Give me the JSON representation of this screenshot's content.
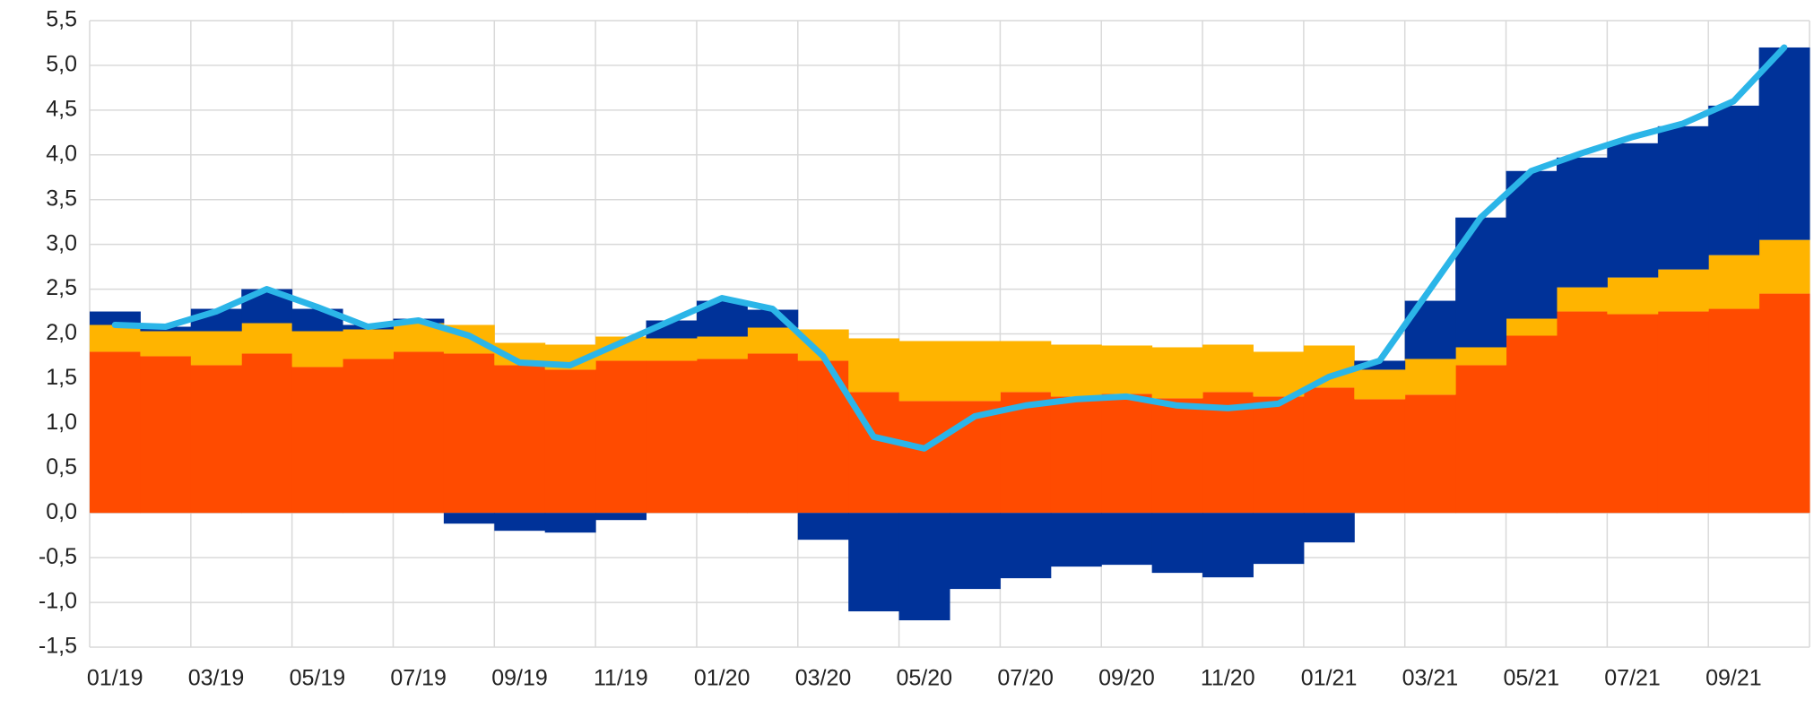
{
  "chart_data": {
    "type": "stacked_bar_line",
    "categories": [
      "01/19",
      null,
      "03/19",
      null,
      "05/19",
      null,
      "07/19",
      null,
      "09/19",
      null,
      "11/19",
      null,
      "01/20",
      null,
      "03/20",
      null,
      "05/20",
      null,
      "07/20",
      null,
      "09/20",
      null,
      "11/20",
      null,
      "01/21",
      null,
      "03/21",
      null,
      "05/21",
      null,
      "07/21",
      null,
      "09/21",
      null
    ],
    "series": [
      {
        "color": "#ff4b00",
        "kind": "bar",
        "values": [
          1.8,
          1.75,
          1.65,
          1.78,
          1.63,
          1.72,
          1.8,
          1.78,
          1.65,
          1.6,
          1.7,
          1.7,
          1.72,
          1.78,
          1.7,
          1.35,
          1.25,
          1.25,
          1.35,
          1.3,
          1.33,
          1.28,
          1.35,
          1.3,
          1.4,
          1.27,
          1.32,
          1.65,
          1.98,
          2.25,
          2.22,
          2.25,
          2.28,
          2.45
        ]
      },
      {
        "color": "#ffb400",
        "kind": "bar",
        "values": [
          0.3,
          0.28,
          0.38,
          0.34,
          0.4,
          0.33,
          0.32,
          0.32,
          0.25,
          0.28,
          0.27,
          0.25,
          0.25,
          0.29,
          0.35,
          0.6,
          0.67,
          0.67,
          0.57,
          0.58,
          0.54,
          0.57,
          0.53,
          0.5,
          0.47,
          0.33,
          0.4,
          0.2,
          0.19,
          0.27,
          0.41,
          0.47,
          0.6,
          0.6
        ]
      },
      {
        "color": "#003299",
        "kind": "bar",
        "values": [
          0.15,
          0.05,
          0.25,
          0.38,
          0.25,
          0.05,
          0.05,
          -0.12,
          -0.2,
          -0.22,
          -0.08,
          0.2,
          0.4,
          0.2,
          -0.3,
          -1.1,
          -1.2,
          -0.85,
          -0.73,
          -0.6,
          -0.58,
          -0.67,
          -0.72,
          -0.57,
          -0.33,
          0.1,
          0.65,
          1.45,
          1.65,
          1.45,
          1.5,
          1.6,
          1.67,
          2.15
        ]
      },
      {
        "color": "#2bb5e8",
        "kind": "line",
        "values": [
          2.1,
          2.08,
          2.25,
          2.5,
          2.3,
          2.08,
          2.15,
          1.98,
          1.68,
          1.65,
          1.9,
          2.15,
          2.4,
          2.28,
          1.75,
          0.85,
          0.72,
          1.08,
          1.2,
          1.27,
          1.3,
          1.2,
          1.17,
          1.22,
          1.52,
          1.7,
          2.5,
          3.3,
          3.82,
          4.02,
          4.2,
          4.35,
          4.6,
          5.2
        ]
      }
    ],
    "ylim": [
      -1.5,
      5.5
    ],
    "yticks": [
      {
        "value": -1.5,
        "label": "-1,5"
      },
      {
        "value": -1,
        "label": "-1,0"
      },
      {
        "value": -0.5,
        "label": "-0,5"
      },
      {
        "value": 0,
        "label": "0,0"
      },
      {
        "value": 0.5,
        "label": "0,5"
      },
      {
        "value": 1,
        "label": "1,0"
      },
      {
        "value": 1.5,
        "label": "1,5"
      },
      {
        "value": 2,
        "label": "2,0"
      },
      {
        "value": 2.5,
        "label": "2,5"
      },
      {
        "value": 3,
        "label": "3,0"
      },
      {
        "value": 3.5,
        "label": "3,5"
      },
      {
        "value": 4,
        "label": "4,0"
      },
      {
        "value": 4.5,
        "label": "4,5"
      },
      {
        "value": 5,
        "label": "5,0"
      },
      {
        "value": 5.5,
        "label": "5,5"
      }
    ],
    "grid": true
  }
}
